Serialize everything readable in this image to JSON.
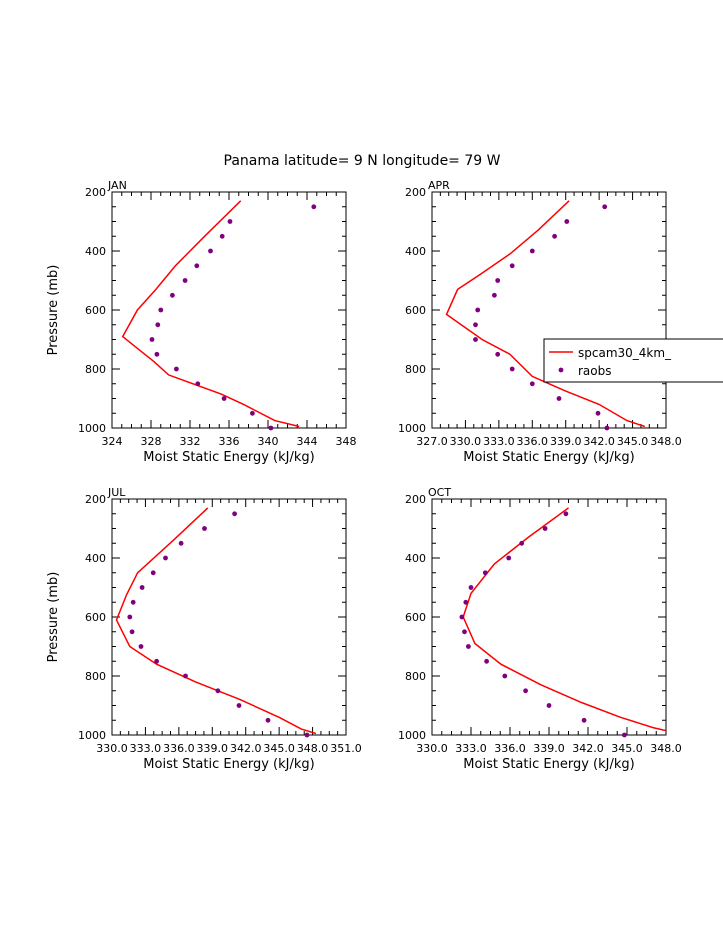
{
  "title": "Panama  latitude= 9 N longitude= 79 W",
  "colors": {
    "model": "#ff0000",
    "obs": "#800080",
    "axis": "#000000"
  },
  "legend": {
    "placement": "right-middle of APR panel",
    "entries": [
      "spcam30_4km_",
      "raobs"
    ]
  },
  "chart_data": [
    {
      "type": "line",
      "panel_label": "JAN",
      "xlabel": "Moist Static Energy (kJ/kg)",
      "ylabel": "Pressure (mb)",
      "xlim": [
        324,
        348
      ],
      "ylim": [
        1000,
        200
      ],
      "x_ticks": [
        "324",
        "328",
        "332",
        "336",
        "340",
        "344",
        "348"
      ],
      "y_ticks": [
        "200",
        "400",
        "600",
        "800",
        "1000"
      ],
      "series": [
        {
          "name": "spcam30_4km_",
          "style": "line",
          "points": [
            [
              337.2,
              230
            ],
            [
              333.5,
              350
            ],
            [
              330.5,
              450
            ],
            [
              328.5,
              530
            ],
            [
              326.6,
              600
            ],
            [
              325.1,
              690
            ],
            [
              328.3,
              775
            ],
            [
              329.8,
              820
            ],
            [
              335.2,
              885
            ],
            [
              337.5,
              920
            ],
            [
              340.7,
              975
            ],
            [
              343.2,
              995
            ]
          ]
        },
        {
          "name": "raobs",
          "style": "marker",
          "points": [
            [
              344.7,
              250
            ],
            [
              336.1,
              300
            ],
            [
              335.3,
              350
            ],
            [
              334.1,
              400
            ],
            [
              332.7,
              450
            ],
            [
              331.5,
              500
            ],
            [
              330.2,
              550
            ],
            [
              329.0,
              600
            ],
            [
              328.7,
              650
            ],
            [
              328.1,
              700
            ],
            [
              328.6,
              750
            ],
            [
              330.6,
              800
            ],
            [
              332.8,
              850
            ],
            [
              335.5,
              900
            ],
            [
              338.4,
              950
            ],
            [
              340.3,
              1000
            ]
          ]
        }
      ]
    },
    {
      "type": "line",
      "panel_label": "APR",
      "xlabel": "Moist Static Energy (kJ/kg)",
      "ylabel": "",
      "xlim": [
        327.0,
        348.0
      ],
      "ylim": [
        1000,
        200
      ],
      "x_ticks": [
        "327.0",
        "330.0",
        "333.0",
        "336.0",
        "339.0",
        "342.0",
        "345.0",
        "348.0"
      ],
      "y_ticks": [
        "200",
        "400",
        "600",
        "800",
        "1000"
      ],
      "series": [
        {
          "name": "spcam30_4km_",
          "style": "line",
          "points": [
            [
              339.3,
              230
            ],
            [
              336.5,
              330
            ],
            [
              334.0,
              410
            ],
            [
              331.3,
              480
            ],
            [
              329.3,
              530
            ],
            [
              328.3,
              615
            ],
            [
              331.5,
              700
            ],
            [
              334.0,
              750
            ],
            [
              336.0,
              825
            ],
            [
              339.0,
              875
            ],
            [
              342.0,
              920
            ],
            [
              344.5,
              975
            ],
            [
              346.1,
              995
            ]
          ]
        },
        {
          "name": "raobs",
          "style": "marker",
          "points": [
            [
              342.5,
              250
            ],
            [
              339.1,
              300
            ],
            [
              338.0,
              350
            ],
            [
              336.0,
              400
            ],
            [
              334.2,
              450
            ],
            [
              332.9,
              500
            ],
            [
              332.6,
              550
            ],
            [
              331.1,
              600
            ],
            [
              330.9,
              650
            ],
            [
              330.9,
              700
            ],
            [
              332.9,
              750
            ],
            [
              334.2,
              800
            ],
            [
              336.0,
              850
            ],
            [
              338.4,
              900
            ],
            [
              341.9,
              950
            ],
            [
              342.7,
              1000
            ]
          ]
        }
      ]
    },
    {
      "type": "line",
      "panel_label": "JUL",
      "xlabel": "Moist Static Energy (kJ/kg)",
      "ylabel": "Pressure (mb)",
      "xlim": [
        330.0,
        351.0
      ],
      "ylim": [
        1000,
        200
      ],
      "x_ticks": [
        "330.0",
        "333.0",
        "336.0",
        "339.0",
        "342.0",
        "345.0",
        "348.0",
        "351.0"
      ],
      "y_ticks": [
        "200",
        "400",
        "600",
        "800",
        "1000"
      ],
      "series": [
        {
          "name": "spcam30_4km_",
          "style": "line",
          "points": [
            [
              338.6,
              230
            ],
            [
              335.5,
              340
            ],
            [
              332.3,
              450
            ],
            [
              331.3,
              525
            ],
            [
              330.4,
              610
            ],
            [
              331.6,
              700
            ],
            [
              334.0,
              760
            ],
            [
              337.5,
              820
            ],
            [
              341.5,
              880
            ],
            [
              345.0,
              940
            ],
            [
              347.0,
              980
            ],
            [
              348.3,
              995
            ]
          ]
        },
        {
          "name": "raobs",
          "style": "marker",
          "points": [
            [
              341.0,
              250
            ],
            [
              338.3,
              300
            ],
            [
              336.2,
              350
            ],
            [
              334.8,
              400
            ],
            [
              333.7,
              450
            ],
            [
              332.7,
              500
            ],
            [
              331.9,
              550
            ],
            [
              331.6,
              600
            ],
            [
              331.8,
              650
            ],
            [
              332.6,
              700
            ],
            [
              334.0,
              750
            ],
            [
              336.6,
              800
            ],
            [
              339.5,
              850
            ],
            [
              341.4,
              900
            ],
            [
              344.0,
              950
            ],
            [
              347.5,
              1000
            ]
          ]
        }
      ]
    },
    {
      "type": "line",
      "panel_label": "OCT",
      "xlabel": "Moist Static Energy (kJ/kg)",
      "ylabel": "",
      "xlim": [
        330.0,
        348.0
      ],
      "ylim": [
        1000,
        200
      ],
      "x_ticks": [
        "330.0",
        "333.0",
        "336.0",
        "339.0",
        "342.0",
        "345.0",
        "348.0"
      ],
      "y_ticks": [
        "200",
        "400",
        "600",
        "800",
        "1000"
      ],
      "series": [
        {
          "name": "spcam30_4km_",
          "style": "line",
          "points": [
            [
              340.5,
              230
            ],
            [
              337.4,
              330
            ],
            [
              334.8,
              420
            ],
            [
              333.0,
              520
            ],
            [
              332.4,
              600
            ],
            [
              333.3,
              690
            ],
            [
              335.3,
              760
            ],
            [
              338.4,
              830
            ],
            [
              341.5,
              890
            ],
            [
              344.5,
              940
            ],
            [
              347.0,
              975
            ],
            [
              348.0,
              985
            ]
          ]
        },
        {
          "name": "raobs",
          "style": "marker",
          "points": [
            [
              340.3,
              250
            ],
            [
              338.7,
              300
            ],
            [
              336.9,
              350
            ],
            [
              335.9,
              400
            ],
            [
              334.1,
              450
            ],
            [
              333.0,
              500
            ],
            [
              332.6,
              550
            ],
            [
              332.3,
              600
            ],
            [
              332.5,
              650
            ],
            [
              332.8,
              700
            ],
            [
              334.2,
              750
            ],
            [
              335.6,
              800
            ],
            [
              337.2,
              850
            ],
            [
              339.0,
              900
            ],
            [
              341.7,
              950
            ],
            [
              344.8,
              1000
            ]
          ]
        }
      ]
    }
  ]
}
